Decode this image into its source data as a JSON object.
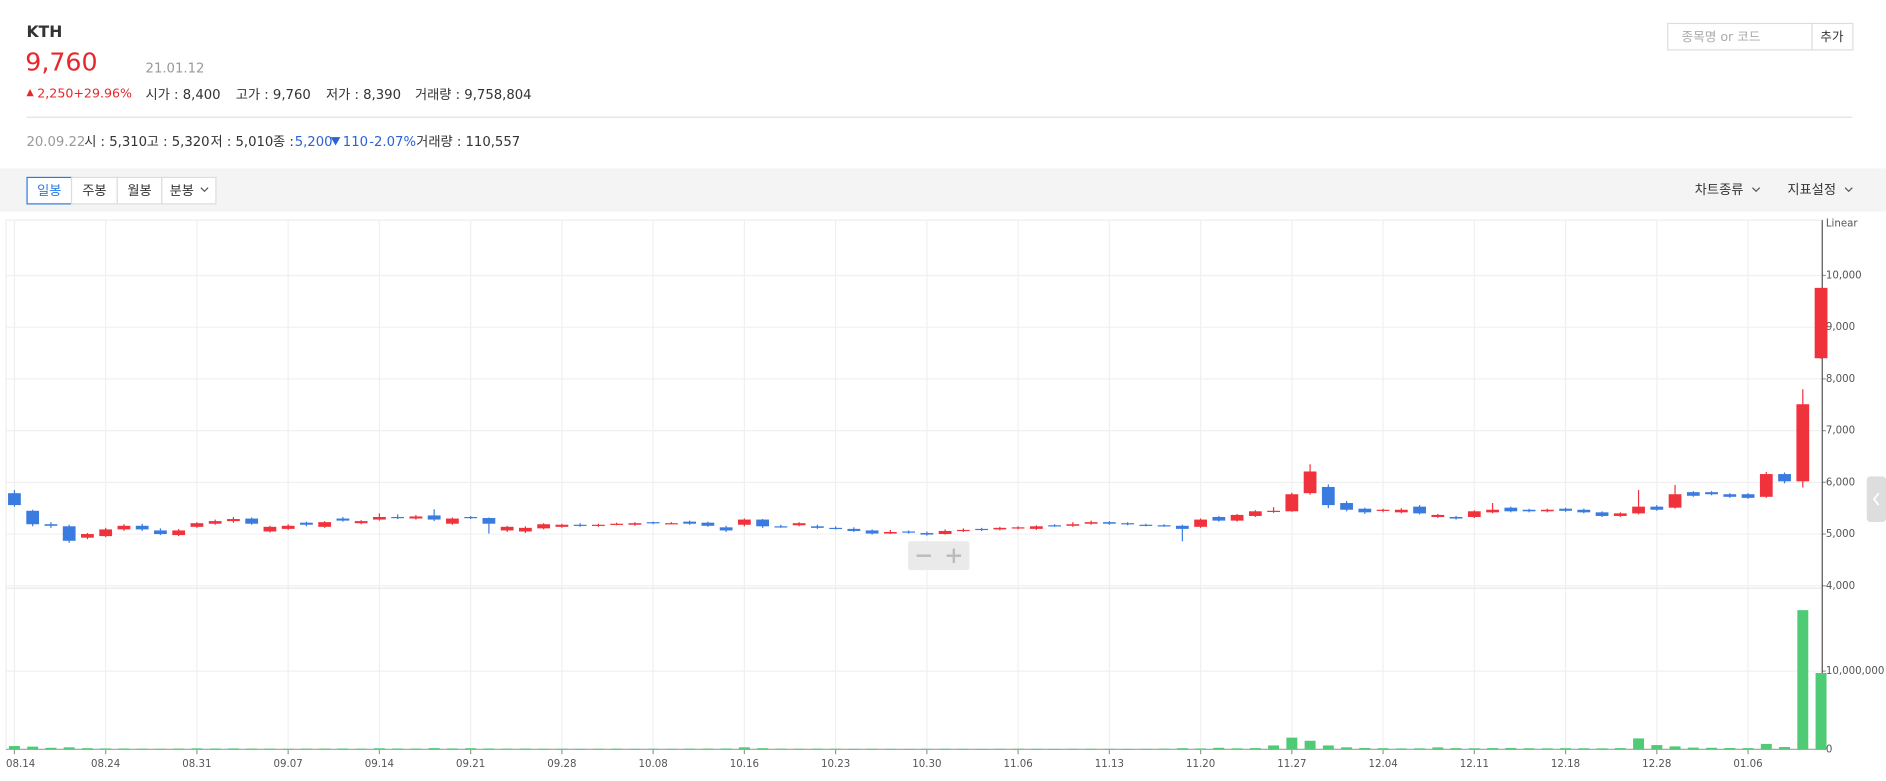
{
  "header": {
    "name": "KTH",
    "price": "9,760",
    "date": "21.01.12",
    "change": "2,250",
    "change_pct": "+29.96%",
    "stats": [
      "시가 : 8,400",
      "고가 : 9,760",
      "저가 : 8,390",
      "거래량 : 9,758,804"
    ]
  },
  "search": {
    "placeholder": "종목명 or 코드",
    "button": "추가"
  },
  "detail": {
    "date": "20.09.22",
    "items": [
      "시 : 5,310",
      "고 : 5,320",
      "저 : 5,010"
    ],
    "close_label": "종 :",
    "close": "5,200",
    "change": "110",
    "change_pct": "-2.07%",
    "volume": "거래량 : 110,557"
  },
  "toolbar": {
    "periods": [
      "일봉",
      "주봉",
      "월봉",
      "분봉"
    ],
    "selected": 0,
    "menus": [
      "차트종류",
      "지표설정"
    ]
  },
  "chart_data": {
    "type": "candlestick",
    "scale_label": "Linear",
    "categories": [
      "08.14",
      null,
      null,
      null,
      null,
      "08.24",
      null,
      null,
      null,
      null,
      "08.31",
      null,
      null,
      null,
      null,
      "09.07",
      null,
      null,
      null,
      null,
      "09.14",
      null,
      null,
      null,
      null,
      "09.21",
      null,
      null,
      null,
      null,
      "09.28",
      null,
      null,
      null,
      null,
      "10.08",
      null,
      null,
      null,
      null,
      "10.16",
      null,
      null,
      null,
      null,
      "10.23",
      null,
      null,
      null,
      null,
      "10.30",
      null,
      null,
      null,
      null,
      "11.06",
      null,
      null,
      null,
      null,
      "11.13",
      null,
      null,
      null,
      null,
      "11.20",
      null,
      null,
      null,
      null,
      "11.27",
      null,
      null,
      null,
      null,
      "12.04",
      null,
      null,
      null,
      null,
      "12.11",
      null,
      null,
      null,
      null,
      "12.18",
      null,
      null,
      null,
      null,
      "12.28",
      null,
      null,
      null,
      null,
      "01.06",
      null,
      null,
      null,
      null
    ],
    "open": [
      5790,
      5450,
      5190,
      5150,
      4930,
      4960,
      5090,
      5160,
      5070,
      4980,
      5140,
      5200,
      5250,
      5300,
      5050,
      5100,
      5220,
      5140,
      5300,
      5210,
      5280,
      5330,
      5300,
      5360,
      5200,
      5330,
      5310,
      5070,
      5050,
      5110,
      5140,
      5180,
      5160,
      5190,
      5180,
      5230,
      5200,
      5240,
      5220,
      5130,
      5180,
      5280,
      5150,
      5170,
      5150,
      5120,
      5100,
      5070,
      5010,
      5050,
      5020,
      5000,
      5070,
      5100,
      5090,
      5110,
      5100,
      5170,
      5160,
      5200,
      5230,
      5210,
      5180,
      5170,
      5160,
      5140,
      5330,
      5260,
      5350,
      5430,
      5440,
      5790,
      5910,
      5600,
      5490,
      5450,
      5420,
      5530,
      5330,
      5330,
      5330,
      5420,
      5510,
      5470,
      5440,
      5490,
      5470,
      5420,
      5350,
      5400,
      5530,
      5510,
      5810,
      5810,
      5770,
      5770,
      5720,
      6160,
      6020,
      8400
    ],
    "high": [
      5850,
      5470,
      5230,
      5180,
      5020,
      5120,
      5190,
      5200,
      5110,
      5100,
      5230,
      5280,
      5330,
      5320,
      5160,
      5190,
      5240,
      5250,
      5330,
      5270,
      5400,
      5380,
      5370,
      5480,
      5320,
      5350,
      5320,
      5160,
      5150,
      5210,
      5200,
      5210,
      5200,
      5220,
      5230,
      5240,
      5230,
      5260,
      5240,
      5160,
      5300,
      5290,
      5180,
      5230,
      5180,
      5150,
      5130,
      5090,
      5080,
      5070,
      5050,
      5090,
      5110,
      5120,
      5140,
      5150,
      5170,
      5190,
      5230,
      5260,
      5250,
      5230,
      5200,
      5190,
      5180,
      5300,
      5350,
      5390,
      5460,
      5520,
      5800,
      6350,
      5960,
      5640,
      5510,
      5490,
      5500,
      5560,
      5390,
      5350,
      5460,
      5600,
      5530,
      5490,
      5490,
      5510,
      5490,
      5440,
      5420,
      5850,
      5560,
      5950,
      5830,
      5830,
      5790,
      5790,
      6200,
      6190,
      7800,
      9760
    ],
    "low": [
      5530,
      5150,
      5120,
      4830,
      4900,
      4940,
      5060,
      5060,
      4980,
      4960,
      5120,
      5180,
      5220,
      5180,
      5030,
      5080,
      5150,
      5120,
      5240,
      5190,
      5260,
      5290,
      5280,
      5250,
      5180,
      5290,
      5010,
      5040,
      5020,
      5090,
      5120,
      5140,
      5140,
      5170,
      5160,
      5190,
      5190,
      5180,
      5140,
      5040,
      5150,
      5120,
      5120,
      5150,
      5100,
      5090,
      5040,
      4990,
      5000,
      5010,
      4970,
      4990,
      5040,
      5060,
      5070,
      5090,
      5080,
      5140,
      5140,
      5180,
      5180,
      5170,
      5150,
      5140,
      4860,
      5120,
      5240,
      5240,
      5330,
      5410,
      5430,
      5760,
      5500,
      5440,
      5390,
      5420,
      5400,
      5380,
      5310,
      5280,
      5310,
      5400,
      5420,
      5420,
      5420,
      5430,
      5400,
      5330,
      5330,
      5380,
      5450,
      5490,
      5720,
      5750,
      5700,
      5680,
      5700,
      5980,
      5900,
      8390
    ],
    "close": [
      5560,
      5190,
      5160,
      4870,
      5000,
      5090,
      5160,
      5090,
      5000,
      5070,
      5210,
      5250,
      5290,
      5200,
      5140,
      5160,
      5180,
      5230,
      5260,
      5250,
      5330,
      5310,
      5340,
      5280,
      5300,
      5310,
      5200,
      5140,
      5120,
      5190,
      5180,
      5160,
      5180,
      5200,
      5210,
      5210,
      5210,
      5200,
      5160,
      5070,
      5280,
      5150,
      5140,
      5210,
      5120,
      5110,
      5060,
      5010,
      5040,
      5030,
      4990,
      5060,
      5080,
      5080,
      5120,
      5130,
      5150,
      5160,
      5190,
      5230,
      5200,
      5190,
      5170,
      5160,
      5100,
      5280,
      5260,
      5370,
      5440,
      5450,
      5770,
      6210,
      5560,
      5470,
      5420,
      5470,
      5470,
      5400,
      5370,
      5300,
      5440,
      5470,
      5440,
      5440,
      5470,
      5450,
      5420,
      5350,
      5400,
      5530,
      5470,
      5770,
      5740,
      5770,
      5720,
      5700,
      6160,
      6020,
      7510,
      9760
    ],
    "volume": [
      420000,
      350000,
      200000,
      260000,
      150000,
      120000,
      110000,
      90000,
      80000,
      100000,
      130000,
      110000,
      120000,
      100000,
      90000,
      80000,
      90000,
      100000,
      110000,
      90000,
      140000,
      110000,
      100000,
      160000,
      120000,
      150000,
      110557,
      90000,
      100000,
      80000,
      80000,
      70000,
      80000,
      90000,
      70000,
      80000,
      70000,
      90000,
      100000,
      110000,
      260000,
      150000,
      90000,
      80000,
      90000,
      80000,
      70000,
      80000,
      70000,
      60000,
      70000,
      80000,
      70000,
      60000,
      70000,
      80000,
      70000,
      60000,
      70000,
      80000,
      70000,
      60000,
      70000,
      90000,
      150000,
      120000,
      200000,
      130000,
      160000,
      500000,
      1500000,
      1100000,
      500000,
      260000,
      180000,
      150000,
      120000,
      130000,
      250000,
      150000,
      140000,
      160000,
      180000,
      140000,
      130000,
      150000,
      140000,
      130000,
      160000,
      1400000,
      550000,
      380000,
      220000,
      200000,
      170000,
      160000,
      700000,
      300000,
      17800000,
      9758804
    ],
    "up_color": "#f0323c",
    "down_color": "#3a7be0",
    "volume_color": "#4ecb74",
    "grid": true,
    "ylim": [
      4000,
      11070
    ],
    "yticks": [
      {
        "value": 4000,
        "label": "4,000"
      },
      {
        "value": 5000,
        "label": "5,000"
      },
      {
        "value": 6000,
        "label": "6,000"
      },
      {
        "value": 7000,
        "label": "7,000"
      },
      {
        "value": 8000,
        "label": "8,000"
      },
      {
        "value": 9000,
        "label": "9,000"
      },
      {
        "value": 10000,
        "label": "10,000"
      }
    ],
    "y2lim": [
      0,
      20300000
    ],
    "y2ticks": [
      0,
      {
        "value": 10000000,
        "label": "10,000,000"
      }
    ]
  }
}
